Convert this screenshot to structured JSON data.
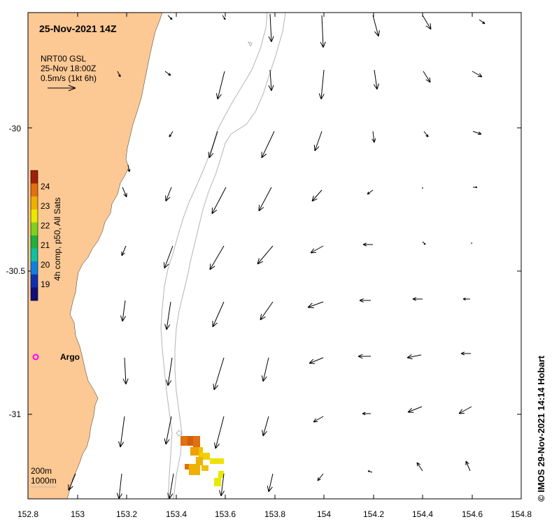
{
  "title": "25-Nov-2021 14Z",
  "legend": {
    "line1": "NRT00 GSL",
    "line2": "25-Nov 18:00Z",
    "line3": "0.5m/s (1kt 6h)"
  },
  "colorbar": {
    "label": "4h comp, p50, All Sats",
    "ticks": [
      "24",
      "23",
      "22",
      "21",
      "20",
      "19"
    ],
    "colors": [
      "#a0200a",
      "#e07010",
      "#f0b000",
      "#e8e800",
      "#80d020",
      "#20b040",
      "#10c0a0",
      "#1080e0",
      "#1030b0",
      "#10107a"
    ]
  },
  "x_ticks": [
    "152.8",
    "153",
    "153.2",
    "153.4",
    "153.6",
    "153.8",
    "154",
    "154.2",
    "154.4",
    "154.6",
    "154.8"
  ],
  "y_ticks": [
    "-30",
    "-30.5",
    "-31"
  ],
  "argo_label": "Argo",
  "contour_labels": {
    "c200": "200m",
    "c1000": "1000m"
  },
  "credit": "© IMOS 29-Nov-2021 14:14 Hobart",
  "colors": {
    "land": "#fcc894",
    "argo": "#ff00ff",
    "contour": "#b4b4b4",
    "arrow": "#000000"
  }
}
